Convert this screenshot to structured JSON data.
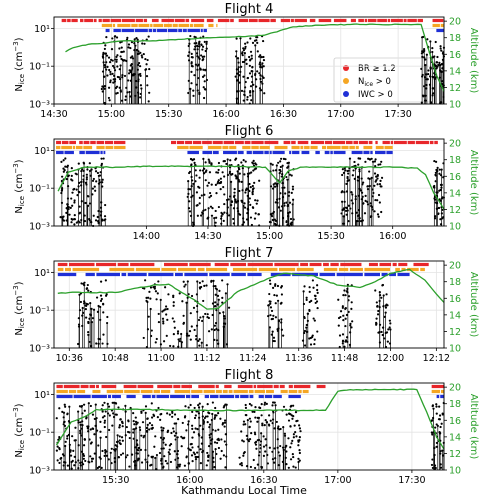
{
  "figure": {
    "xlabel": "Kathmandu Local Time",
    "ylabel_left_main": "N",
    "ylabel_left_sub": "ice",
    "ylabel_left_unit": " (cm",
    "ylabel_left_exp": "−3",
    "ylabel_left_close": ")",
    "ylabel_right": "Altitude (km)",
    "colors": {
      "altitude": "#2ca02c",
      "br": "#e8262a",
      "nice": "#f5a623",
      "iwc": "#1f2fd6",
      "points": "#000000"
    }
  },
  "legend": {
    "items": [
      {
        "label": "BR ≥ 1.2",
        "color": "#e8262a"
      },
      {
        "label": "N_ice > 0",
        "color": "#f5a623"
      },
      {
        "label": "IWC > 0",
        "color": "#1f2fd6"
      }
    ],
    "placement": "center-right, in Flight 4 panel"
  },
  "chart_data": [
    {
      "type": "line",
      "title": "Flight 4",
      "x_range": [
        "14:30",
        "17:54"
      ],
      "x_ticks": [
        "14:30",
        "15:00",
        "15:30",
        "16:00",
        "16:30",
        "17:00",
        "17:30"
      ],
      "y_left": {
        "scale": "log",
        "range": [
          0.001,
          40
        ],
        "ticks": [
          "10⁻³",
          "10⁻¹",
          "10¹"
        ]
      },
      "y_right": {
        "range": [
          10,
          20.5
        ],
        "ticks": [
          "10",
          "12",
          "14",
          "16",
          "18",
          "20"
        ]
      },
      "altitude": {
        "time": [
          "14:36",
          "14:40",
          "14:48",
          "14:55",
          "15:05",
          "15:20",
          "15:35",
          "15:50",
          "16:05",
          "16:20",
          "16:35",
          "16:50",
          "17:05",
          "17:20",
          "17:35",
          "17:42",
          "17:46",
          "17:50",
          "17:54"
        ],
        "km": [
          16.3,
          16.8,
          17.2,
          17.3,
          17.6,
          17.6,
          17.8,
          18.0,
          18.1,
          18.3,
          19.3,
          19.5,
          19.6,
          19.6,
          19.6,
          19.6,
          16.5,
          13.5,
          11.5
        ]
      },
      "flags": {
        "br": [
          [
            "14:34",
            "17:43"
          ],
          [
            "17:48",
            "17:54"
          ]
        ],
        "nice": [
          [
            "14:55",
            "15:55"
          ],
          [
            "17:48",
            "17:54"
          ]
        ],
        "iwc": [
          [
            "14:57",
            "15:50"
          ],
          [
            "17:50",
            "17:54"
          ]
        ]
      },
      "nice_points": {
        "seed": 11,
        "clusters": [
          [
            "14:55",
            "15:20"
          ],
          [
            "15:40",
            "15:50"
          ],
          [
            "16:05",
            "16:20"
          ],
          [
            "17:42",
            "17:54"
          ]
        ]
      }
    },
    {
      "type": "line",
      "title": "Flight 6",
      "x_range": [
        "13:15",
        "16:25"
      ],
      "x_ticks": [
        "14:00",
        "14:30",
        "15:00",
        "15:30",
        "16:00"
      ],
      "y_left": {
        "scale": "log",
        "range": [
          0.001,
          40
        ],
        "ticks": [
          "10⁻³",
          "10⁻¹",
          "10¹"
        ]
      },
      "y_right": {
        "range": [
          10,
          20.5
        ],
        "ticks": [
          "10",
          "12",
          "14",
          "16",
          "18",
          "20"
        ]
      },
      "altitude": {
        "time": [
          "13:17",
          "13:22",
          "13:30",
          "13:45",
          "14:00",
          "14:20",
          "14:40",
          "14:58",
          "15:02",
          "15:05",
          "15:09",
          "15:15",
          "15:30",
          "15:45",
          "16:00",
          "16:12",
          "16:16",
          "16:20",
          "16:25"
        ],
        "km": [
          14.2,
          16.5,
          17.1,
          17.1,
          17.2,
          17.2,
          17.2,
          17.1,
          16.0,
          15.2,
          16.6,
          17.1,
          17.1,
          17.1,
          17.1,
          17.0,
          16.2,
          14.0,
          12.0
        ]
      },
      "flags": {
        "br": [
          [
            "13:16",
            "13:50"
          ],
          [
            "14:12",
            "16:22"
          ]
        ],
        "nice": [
          [
            "13:16",
            "13:50"
          ],
          [
            "14:15",
            "16:00"
          ]
        ],
        "iwc": [
          [
            "13:16",
            "13:40"
          ],
          [
            "14:20",
            "16:00"
          ]
        ]
      },
      "nice_points": {
        "seed": 23,
        "clusters": [
          [
            "13:18",
            "13:40"
          ],
          [
            "14:20",
            "14:55"
          ],
          [
            "15:00",
            "15:12"
          ],
          [
            "15:35",
            "15:55"
          ],
          [
            "16:20",
            "16:25"
          ]
        ]
      }
    },
    {
      "type": "line",
      "title": "Flight 7",
      "x_range": [
        "10:32",
        "12:14"
      ],
      "x_ticks": [
        "10:36",
        "10:48",
        "11:00",
        "11:12",
        "11:24",
        "11:36",
        "11:48",
        "12:00",
        "12:12"
      ],
      "y_left": {
        "scale": "log",
        "range": [
          0.001,
          40
        ],
        "ticks": [
          "10⁻³",
          "10⁻¹",
          "10¹"
        ]
      },
      "y_right": {
        "range": [
          10,
          20.5
        ],
        "ticks": [
          "10",
          "12",
          "14",
          "16",
          "18",
          "20"
        ]
      },
      "altitude": {
        "time": [
          "10:33",
          "10:36",
          "10:48",
          "10:58",
          "11:02",
          "11:08",
          "11:12",
          "11:15",
          "11:20",
          "11:26",
          "11:32",
          "11:40",
          "11:46",
          "11:52",
          "11:56",
          "12:00",
          "12:05",
          "12:09",
          "12:12",
          "12:14"
        ],
        "km": [
          16.6,
          16.7,
          16.7,
          17.6,
          17.7,
          16.0,
          14.7,
          14.8,
          16.8,
          18.0,
          19.0,
          18.7,
          17.6,
          17.3,
          18.0,
          19.0,
          19.5,
          18.2,
          16.5,
          15.5
        ]
      },
      "flags": {
        "br": [
          [
            "10:33",
            "12:10"
          ]
        ],
        "nice": [
          [
            "10:33",
            "12:09"
          ]
        ],
        "iwc": [
          [
            "10:33",
            "12:05"
          ]
        ]
      },
      "nice_points": {
        "seed": 37,
        "clusters": [
          [
            "10:38",
            "10:46"
          ],
          [
            "10:55",
            "11:18"
          ],
          [
            "11:28",
            "11:32"
          ],
          [
            "11:37",
            "11:41"
          ],
          [
            "11:46",
            "11:50"
          ],
          [
            "11:56",
            "12:00"
          ]
        ]
      }
    },
    {
      "type": "line",
      "title": "Flight 8",
      "x_range": [
        "15:05",
        "17:43"
      ],
      "x_ticks": [
        "15:30",
        "16:00",
        "16:30",
        "17:00",
        "17:30"
      ],
      "y_left": {
        "scale": "log",
        "range": [
          0.001,
          40
        ],
        "ticks": [
          "10⁻³",
          "10⁻¹",
          "10¹"
        ]
      },
      "y_right": {
        "range": [
          10,
          20.5
        ],
        "ticks": [
          "10",
          "12",
          "14",
          "16",
          "18",
          "20"
        ]
      },
      "altitude": {
        "time": [
          "15:06",
          "15:12",
          "15:18",
          "15:22",
          "15:28",
          "15:40",
          "16:00",
          "16:20",
          "16:40",
          "16:55",
          "17:00",
          "17:05",
          "17:20",
          "17:32",
          "17:36",
          "17:40",
          "17:43"
        ],
        "km": [
          13.0,
          15.8,
          16.5,
          17.3,
          17.3,
          17.3,
          17.2,
          17.2,
          17.2,
          17.2,
          19.5,
          19.7,
          19.7,
          19.7,
          17.0,
          14.0,
          12.5
        ]
      },
      "flags": {
        "br": [
          [
            "15:06",
            "16:55"
          ],
          [
            "17:38",
            "17:43"
          ]
        ],
        "nice": [
          [
            "15:06",
            "16:50"
          ],
          [
            "17:38",
            "17:43"
          ]
        ],
        "iwc": [
          [
            "15:06",
            "16:45"
          ],
          [
            "17:40",
            "17:43"
          ]
        ]
      },
      "nice_points": {
        "seed": 53,
        "clusters": [
          [
            "15:06",
            "15:20"
          ],
          [
            "15:20",
            "15:55"
          ],
          [
            "15:55",
            "16:15"
          ],
          [
            "16:20",
            "16:45"
          ],
          [
            "17:38",
            "17:43"
          ]
        ]
      }
    }
  ]
}
